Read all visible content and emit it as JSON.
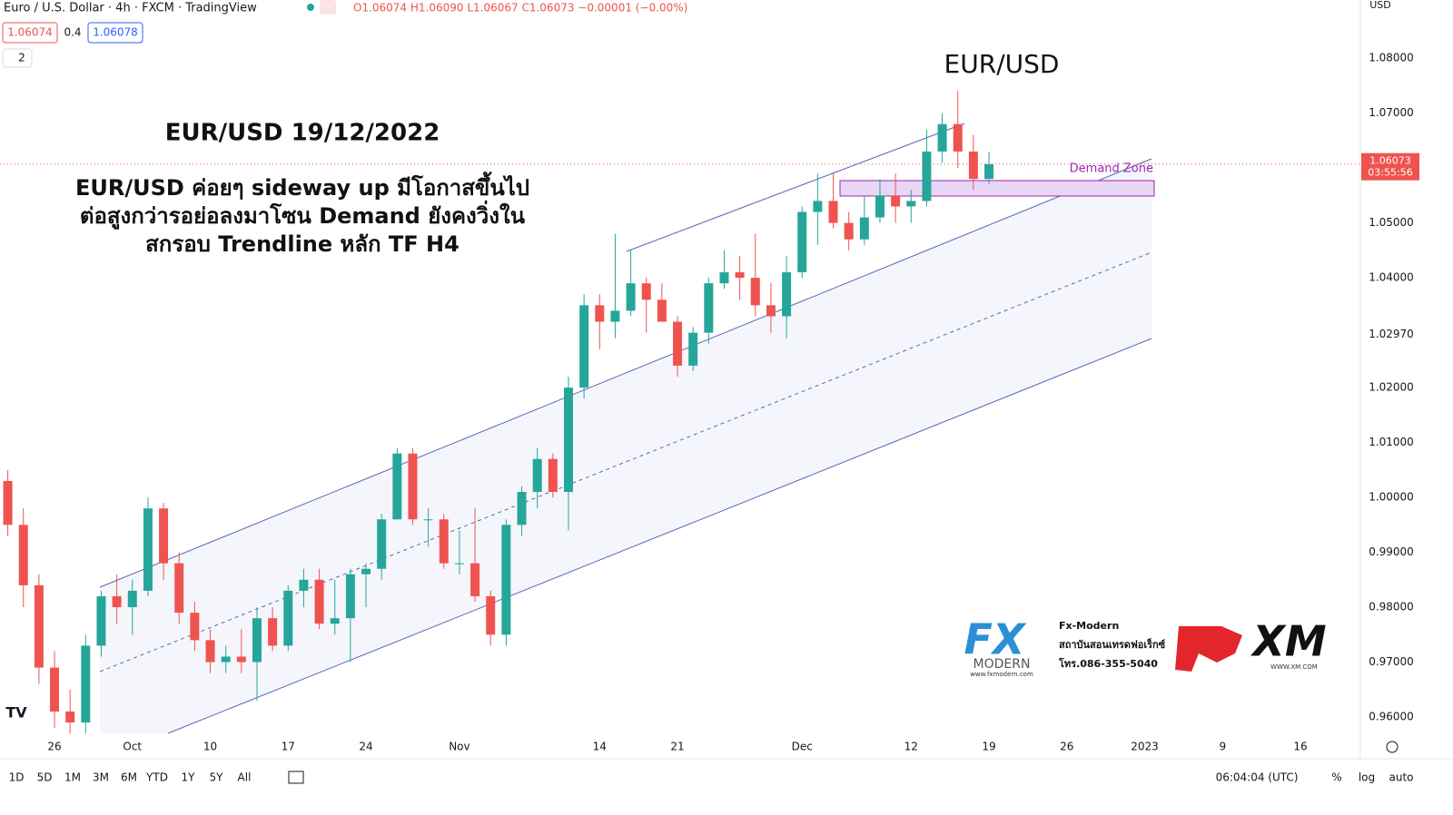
{
  "header": {
    "symbol": "Euro / U.S. Dollar · 4h · FXCM · TradingView",
    "ohlc": "O1.06074 H1.06090 L1.06067 C1.06073 −0.00001 (−0.00%)",
    "bid": "1.06074",
    "spread": "0.4",
    "ask": "1.06078",
    "indicators": "2",
    "currency": "USD"
  },
  "annotations": {
    "pair_title": "EUR/USD",
    "date_title": "EUR/USD 19/12/2022",
    "comment_1": "EUR/USD ค่อยๆ sideway up มีโอกาสขึ้นไป",
    "comment_2": "ต่อสูงกว่ารอย่อลงมาโซน Demand ยังคงวิ่งใน",
    "comment_3": "สกรอบ Trendline หลัก TF H4",
    "demand_zone": "Demand Zone"
  },
  "logos": {
    "fx": "FX",
    "modern": "MODERN",
    "fx_url": "www.fxmodern.com",
    "brand": "Fx-Modern",
    "institute": "สถาบันสอนเทรดฟอเร็กซ์",
    "phone": "โทร.086-355-5040",
    "xm": "XM",
    "xm_url": "WWW.XM.COM"
  },
  "toolbar": {
    "ranges": [
      "1D",
      "5D",
      "1M",
      "3M",
      "6M",
      "YTD",
      "1Y",
      "5Y",
      "All"
    ],
    "clock": "06:04:04 (UTC)",
    "percent": "%",
    "log": "log",
    "auto": "auto"
  },
  "chart_data": {
    "type": "candlestick",
    "up_color": "#26a69a",
    "down_color": "#ef5350",
    "grid": false,
    "last_price": 1.06073,
    "countdown": "03:55:56",
    "categories": [
      null,
      null,
      null,
      "26",
      null,
      null,
      null,
      null,
      "Oct",
      null,
      null,
      null,
      null,
      "10",
      null,
      null,
      null,
      null,
      "17",
      null,
      null,
      null,
      null,
      "24",
      null,
      null,
      null,
      null,
      null,
      "Nov",
      null,
      null,
      null,
      null,
      null,
      null,
      null,
      null,
      "14",
      null,
      null,
      null,
      null,
      "21",
      null,
      null,
      null,
      null,
      null,
      null,
      null,
      "Dec",
      null,
      null,
      null,
      null,
      null,
      null,
      "12",
      null,
      null,
      null,
      null,
      "19",
      null,
      null,
      null,
      null,
      "26",
      null,
      null,
      null,
      null,
      "2023",
      null,
      null,
      null,
      null,
      "9",
      null,
      null,
      null,
      null,
      "16"
    ],
    "open": [
      1.003,
      0.995,
      0.984,
      0.969,
      0.961,
      0.959,
      0.973,
      0.982,
      0.98,
      0.983,
      0.998,
      0.988,
      0.979,
      0.974,
      0.97,
      0.971,
      0.97,
      0.978,
      0.973,
      0.983,
      0.985,
      0.977,
      0.978,
      0.986,
      0.987,
      0.996,
      1.008,
      0.996,
      0.996,
      0.988,
      0.988,
      0.982,
      0.975,
      0.995,
      1.001,
      1.007,
      1.001,
      1.02,
      1.035,
      1.032,
      1.034,
      1.039,
      1.036,
      1.032,
      1.024,
      1.03,
      1.039,
      1.041,
      1.04,
      1.035,
      1.033,
      1.041,
      1.052,
      1.054,
      1.05,
      1.047,
      1.051,
      1.055,
      1.053,
      1.054,
      1.063,
      1.068,
      1.063,
      1.058,
      null,
      null,
      null,
      null,
      null,
      null,
      null,
      null,
      null,
      null,
      null,
      null,
      null,
      null,
      null,
      null,
      null,
      null,
      null,
      null
    ],
    "high": [
      1.005,
      0.998,
      0.986,
      0.972,
      0.965,
      0.975,
      0.983,
      0.986,
      0.985,
      1.0,
      0.999,
      0.99,
      0.981,
      0.976,
      0.973,
      0.976,
      0.98,
      0.98,
      0.984,
      0.987,
      0.987,
      0.985,
      0.987,
      0.988,
      0.997,
      1.009,
      1.009,
      0.998,
      0.997,
      0.994,
      0.998,
      0.983,
      0.996,
      1.002,
      1.009,
      1.008,
      1.022,
      1.037,
      1.037,
      1.048,
      1.045,
      1.04,
      1.039,
      1.033,
      1.031,
      1.04,
      1.045,
      1.044,
      1.048,
      1.039,
      1.044,
      1.053,
      1.059,
      1.059,
      1.052,
      1.055,
      1.058,
      1.059,
      1.056,
      1.067,
      1.07,
      1.074,
      1.066,
      1.063,
      null,
      null,
      null,
      null,
      null,
      null,
      null,
      null,
      null,
      null,
      null,
      null,
      null,
      null,
      null,
      null,
      null,
      null,
      null,
      null
    ],
    "low": [
      0.993,
      0.98,
      0.966,
      0.958,
      0.957,
      0.957,
      0.971,
      0.977,
      0.975,
      0.982,
      0.985,
      0.977,
      0.972,
      0.968,
      0.968,
      0.968,
      0.963,
      0.972,
      0.972,
      0.98,
      0.976,
      0.975,
      0.97,
      0.98,
      0.985,
      0.996,
      0.995,
      0.991,
      0.987,
      0.986,
      0.981,
      0.973,
      0.973,
      0.993,
      0.998,
      1.0,
      0.994,
      1.018,
      1.027,
      1.029,
      1.033,
      1.03,
      1.032,
      1.022,
      1.023,
      1.028,
      1.038,
      1.036,
      1.033,
      1.03,
      1.029,
      1.04,
      1.046,
      1.049,
      1.045,
      1.046,
      1.05,
      1.05,
      1.05,
      1.053,
      1.061,
      1.06,
      1.056,
      1.057,
      null,
      null,
      null,
      null,
      null,
      null,
      null,
      null,
      null,
      null,
      null,
      null,
      null,
      null,
      null,
      null,
      null,
      null,
      null,
      null
    ],
    "close": [
      0.995,
      0.984,
      0.969,
      0.961,
      0.959,
      0.973,
      0.982,
      0.98,
      0.983,
      0.998,
      0.988,
      0.979,
      0.974,
      0.97,
      0.971,
      0.97,
      0.978,
      0.973,
      0.983,
      0.985,
      0.977,
      0.978,
      0.986,
      0.987,
      0.996,
      1.008,
      0.996,
      0.996,
      0.988,
      0.988,
      0.982,
      0.975,
      0.995,
      1.001,
      1.007,
      1.001,
      1.02,
      1.035,
      1.032,
      1.034,
      1.039,
      1.036,
      1.032,
      1.024,
      1.03,
      1.039,
      1.041,
      1.04,
      1.035,
      1.033,
      1.041,
      1.052,
      1.054,
      1.05,
      1.047,
      1.051,
      1.055,
      1.053,
      1.054,
      1.063,
      1.068,
      1.063,
      1.058,
      1.0607,
      null,
      null,
      null,
      null,
      null,
      null,
      null,
      null,
      null,
      null,
      null,
      null,
      null,
      null,
      null,
      null,
      null,
      null,
      null,
      null
    ],
    "ylim": [
      0.9567,
      1.0906
    ],
    "yticks": [
      {
        "value": 1.08,
        "label": "1.08000"
      },
      {
        "value": 1.07,
        "label": "1.07000"
      },
      {
        "value": 1.05,
        "label": "1.05000"
      },
      {
        "value": 1.04,
        "label": "1.04000"
      },
      {
        "value": 1.0297,
        "label": "1.02970"
      },
      {
        "value": 1.02,
        "label": "1.02000"
      },
      {
        "value": 1.01,
        "label": "1.01000"
      },
      {
        "value": 1.0,
        "label": "1.00000"
      },
      {
        "value": 0.99,
        "label": "0.99000"
      },
      {
        "value": 0.98,
        "label": "0.98000"
      },
      {
        "value": 0.97,
        "label": "0.97000"
      },
      {
        "value": 0.96,
        "label": "0.96000"
      }
    ]
  }
}
